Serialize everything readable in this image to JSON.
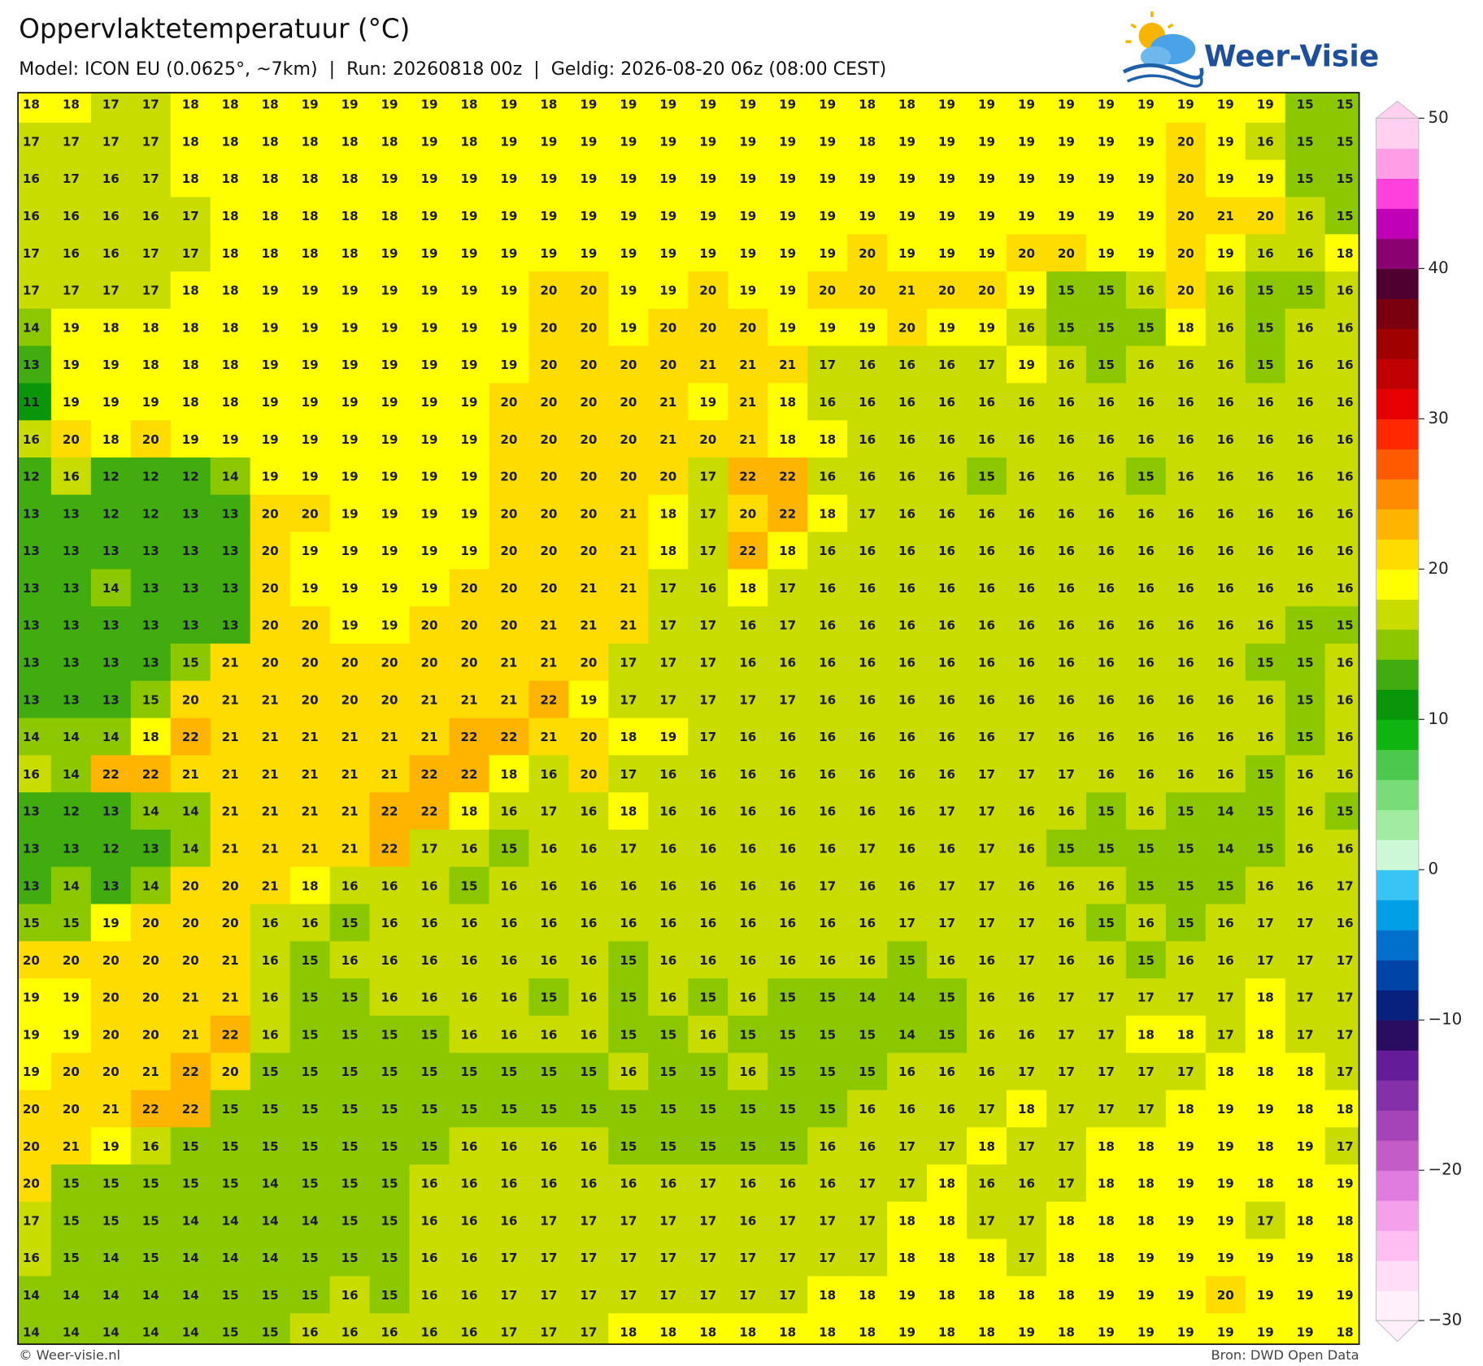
{
  "chart_data": {
    "type": "grid",
    "title": "Oppervlaktetemperatuur (°C)",
    "subtitle": "Model: ICON EU (0.0625°, ~7km)  |  Run: 20260818 00z  |  Geldig: 2026-08-20 06z (08:00 CEST)",
    "values": [
      [
        18,
        18,
        17,
        17,
        18,
        18,
        18,
        19,
        19,
        19,
        19,
        18,
        19,
        18,
        19,
        19,
        19,
        19,
        19,
        19,
        19,
        18,
        18,
        19,
        19,
        19,
        19,
        19,
        19,
        19,
        19,
        19,
        15,
        15
      ],
      [
        17,
        17,
        17,
        17,
        18,
        18,
        18,
        18,
        18,
        18,
        19,
        18,
        19,
        19,
        19,
        19,
        19,
        19,
        19,
        19,
        19,
        18,
        19,
        19,
        19,
        19,
        19,
        19,
        19,
        20,
        19,
        16,
        15,
        15
      ],
      [
        16,
        17,
        16,
        17,
        18,
        18,
        18,
        18,
        18,
        19,
        19,
        19,
        19,
        19,
        19,
        19,
        19,
        19,
        19,
        19,
        19,
        19,
        19,
        19,
        19,
        19,
        19,
        19,
        19,
        20,
        19,
        19,
        15,
        15
      ],
      [
        16,
        16,
        16,
        16,
        17,
        18,
        18,
        18,
        18,
        18,
        19,
        19,
        19,
        19,
        19,
        19,
        19,
        19,
        19,
        19,
        19,
        19,
        19,
        19,
        19,
        19,
        19,
        19,
        19,
        20,
        21,
        20,
        16,
        15
      ],
      [
        17,
        16,
        16,
        17,
        17,
        18,
        18,
        18,
        18,
        19,
        19,
        19,
        19,
        19,
        19,
        19,
        19,
        19,
        19,
        19,
        19,
        20,
        19,
        19,
        19,
        20,
        20,
        19,
        19,
        20,
        19,
        16,
        16,
        18
      ],
      [
        17,
        17,
        17,
        17,
        18,
        18,
        19,
        19,
        19,
        19,
        19,
        19,
        19,
        20,
        20,
        19,
        19,
        20,
        19,
        19,
        20,
        20,
        21,
        20,
        20,
        19,
        15,
        15,
        16,
        20,
        16,
        15,
        15,
        16
      ],
      [
        14,
        19,
        18,
        18,
        18,
        18,
        19,
        19,
        19,
        19,
        19,
        19,
        19,
        20,
        20,
        19,
        20,
        20,
        20,
        19,
        19,
        19,
        20,
        19,
        19,
        16,
        15,
        15,
        15,
        18,
        16,
        15,
        16,
        16
      ],
      [
        13,
        19,
        19,
        18,
        18,
        18,
        19,
        19,
        19,
        19,
        19,
        19,
        19,
        20,
        20,
        20,
        20,
        21,
        21,
        21,
        17,
        16,
        16,
        16,
        17,
        19,
        16,
        15,
        16,
        16,
        16,
        15,
        16,
        16
      ],
      [
        11,
        19,
        19,
        19,
        18,
        18,
        19,
        19,
        19,
        19,
        19,
        19,
        20,
        20,
        20,
        20,
        21,
        19,
        21,
        18,
        16,
        16,
        16,
        16,
        16,
        16,
        16,
        16,
        16,
        16,
        16,
        16,
        16,
        16
      ],
      [
        16,
        20,
        18,
        20,
        19,
        19,
        19,
        19,
        19,
        19,
        19,
        19,
        20,
        20,
        20,
        20,
        21,
        20,
        21,
        18,
        18,
        16,
        16,
        16,
        16,
        16,
        16,
        16,
        16,
        16,
        16,
        16,
        16,
        16
      ],
      [
        12,
        16,
        12,
        12,
        12,
        14,
        19,
        19,
        19,
        19,
        19,
        19,
        20,
        20,
        20,
        20,
        20,
        17,
        22,
        22,
        16,
        16,
        16,
        16,
        15,
        16,
        16,
        16,
        15,
        16,
        16,
        16,
        16,
        16
      ],
      [
        13,
        13,
        12,
        12,
        13,
        13,
        20,
        20,
        19,
        19,
        19,
        19,
        20,
        20,
        20,
        21,
        18,
        17,
        20,
        22,
        18,
        17,
        16,
        16,
        16,
        16,
        16,
        16,
        16,
        16,
        16,
        16,
        16,
        16
      ],
      [
        13,
        13,
        13,
        13,
        13,
        13,
        20,
        19,
        19,
        19,
        19,
        19,
        20,
        20,
        20,
        21,
        18,
        17,
        22,
        18,
        16,
        16,
        16,
        16,
        16,
        16,
        16,
        16,
        16,
        16,
        16,
        16,
        16,
        16
      ],
      [
        13,
        13,
        14,
        13,
        13,
        13,
        20,
        19,
        19,
        19,
        19,
        20,
        20,
        20,
        21,
        21,
        17,
        16,
        18,
        17,
        16,
        16,
        16,
        16,
        16,
        16,
        16,
        16,
        16,
        16,
        16,
        16,
        16,
        16
      ],
      [
        13,
        13,
        13,
        13,
        13,
        13,
        20,
        20,
        19,
        19,
        20,
        20,
        20,
        21,
        21,
        21,
        17,
        17,
        16,
        17,
        16,
        16,
        16,
        16,
        16,
        16,
        16,
        16,
        16,
        16,
        16,
        16,
        15,
        15
      ],
      [
        13,
        13,
        13,
        13,
        15,
        21,
        20,
        20,
        20,
        20,
        20,
        20,
        21,
        21,
        20,
        17,
        17,
        17,
        16,
        16,
        16,
        16,
        16,
        16,
        16,
        16,
        16,
        16,
        16,
        16,
        16,
        15,
        15,
        16
      ],
      [
        13,
        13,
        13,
        15,
        20,
        21,
        21,
        20,
        20,
        20,
        21,
        21,
        21,
        22,
        19,
        17,
        17,
        17,
        17,
        17,
        16,
        16,
        16,
        16,
        16,
        16,
        16,
        16,
        16,
        16,
        16,
        16,
        15,
        16
      ],
      [
        14,
        14,
        14,
        18,
        22,
        21,
        21,
        21,
        21,
        21,
        21,
        22,
        22,
        21,
        20,
        18,
        19,
        17,
        16,
        16,
        16,
        16,
        16,
        16,
        16,
        17,
        16,
        16,
        16,
        16,
        16,
        16,
        15,
        16
      ],
      [
        16,
        14,
        22,
        22,
        21,
        21,
        21,
        21,
        21,
        21,
        22,
        22,
        18,
        16,
        20,
        17,
        16,
        16,
        16,
        16,
        16,
        16,
        16,
        16,
        17,
        17,
        17,
        16,
        16,
        16,
        16,
        15,
        16,
        16
      ],
      [
        13,
        12,
        13,
        14,
        14,
        21,
        21,
        21,
        21,
        22,
        22,
        18,
        16,
        17,
        16,
        18,
        16,
        16,
        16,
        16,
        16,
        16,
        16,
        17,
        17,
        16,
        16,
        15,
        16,
        15,
        14,
        15,
        16,
        15
      ],
      [
        13,
        13,
        12,
        13,
        14,
        21,
        21,
        21,
        21,
        22,
        17,
        16,
        15,
        16,
        16,
        17,
        16,
        16,
        16,
        16,
        16,
        17,
        16,
        16,
        17,
        16,
        15,
        15,
        15,
        15,
        14,
        15,
        16,
        16
      ],
      [
        13,
        14,
        13,
        14,
        20,
        20,
        21,
        18,
        16,
        16,
        16,
        15,
        16,
        16,
        16,
        16,
        16,
        16,
        16,
        16,
        17,
        16,
        16,
        17,
        17,
        16,
        16,
        16,
        15,
        15,
        15,
        16,
        16,
        17
      ],
      [
        15,
        15,
        19,
        20,
        20,
        20,
        16,
        16,
        15,
        16,
        16,
        16,
        16,
        16,
        16,
        16,
        16,
        16,
        16,
        16,
        16,
        16,
        17,
        17,
        17,
        17,
        16,
        15,
        16,
        15,
        16,
        17,
        17,
        16
      ],
      [
        20,
        20,
        20,
        20,
        20,
        21,
        16,
        15,
        16,
        16,
        16,
        16,
        16,
        16,
        16,
        15,
        16,
        16,
        16,
        16,
        16,
        16,
        15,
        16,
        16,
        17,
        16,
        16,
        15,
        16,
        16,
        17,
        17,
        17
      ],
      [
        19,
        19,
        20,
        20,
        21,
        21,
        16,
        15,
        15,
        16,
        16,
        16,
        16,
        15,
        16,
        15,
        16,
        15,
        16,
        15,
        15,
        14,
        14,
        15,
        16,
        16,
        17,
        17,
        17,
        17,
        17,
        18,
        17,
        17
      ],
      [
        19,
        19,
        20,
        20,
        21,
        22,
        16,
        15,
        15,
        15,
        15,
        16,
        16,
        16,
        16,
        15,
        15,
        16,
        15,
        15,
        15,
        15,
        14,
        15,
        16,
        16,
        17,
        17,
        18,
        18,
        17,
        18,
        17,
        17
      ],
      [
        19,
        20,
        20,
        21,
        22,
        20,
        15,
        15,
        15,
        15,
        15,
        15,
        15,
        15,
        15,
        16,
        15,
        15,
        16,
        15,
        15,
        15,
        16,
        16,
        16,
        17,
        17,
        17,
        17,
        17,
        18,
        18,
        18,
        17
      ],
      [
        20,
        20,
        21,
        22,
        22,
        15,
        15,
        15,
        15,
        15,
        15,
        15,
        15,
        15,
        15,
        15,
        15,
        15,
        15,
        15,
        15,
        16,
        16,
        16,
        17,
        18,
        17,
        17,
        17,
        18,
        19,
        19,
        18,
        18
      ],
      [
        20,
        21,
        19,
        16,
        15,
        15,
        15,
        15,
        15,
        15,
        15,
        16,
        16,
        16,
        16,
        15,
        15,
        15,
        15,
        15,
        16,
        16,
        17,
        17,
        18,
        17,
        17,
        18,
        18,
        19,
        19,
        18,
        19,
        17
      ],
      [
        20,
        15,
        15,
        15,
        15,
        15,
        14,
        15,
        15,
        15,
        16,
        16,
        16,
        16,
        16,
        16,
        16,
        17,
        16,
        16,
        16,
        17,
        17,
        18,
        16,
        16,
        17,
        18,
        18,
        19,
        19,
        18,
        18,
        19
      ],
      [
        17,
        15,
        15,
        15,
        14,
        14,
        14,
        14,
        15,
        15,
        16,
        16,
        16,
        17,
        17,
        17,
        17,
        17,
        16,
        17,
        17,
        17,
        18,
        18,
        17,
        17,
        18,
        18,
        18,
        19,
        19,
        17,
        18,
        18
      ],
      [
        16,
        15,
        14,
        15,
        14,
        14,
        14,
        15,
        15,
        15,
        16,
        16,
        17,
        17,
        17,
        17,
        17,
        17,
        17,
        17,
        17,
        17,
        18,
        18,
        18,
        17,
        18,
        18,
        19,
        19,
        19,
        19,
        19,
        18
      ],
      [
        14,
        14,
        14,
        14,
        14,
        15,
        15,
        15,
        16,
        15,
        16,
        16,
        17,
        17,
        17,
        17,
        17,
        17,
        17,
        17,
        18,
        18,
        19,
        18,
        18,
        18,
        18,
        19,
        19,
        19,
        20,
        19,
        19,
        19
      ],
      [
        14,
        14,
        14,
        14,
        14,
        15,
        15,
        16,
        16,
        16,
        16,
        16,
        17,
        17,
        17,
        18,
        18,
        18,
        18,
        18,
        18,
        18,
        19,
        18,
        18,
        19,
        18,
        19,
        19,
        19,
        19,
        19,
        19,
        18
      ]
    ],
    "colorbar": {
      "lim": [
        -30,
        50
      ],
      "ticks": [
        {
          "value": -30,
          "label": "−30"
        },
        {
          "value": -20,
          "label": "−20"
        },
        {
          "value": -10,
          "label": "−10"
        },
        0,
        10,
        20,
        30,
        40,
        50
      ],
      "colors": [
        "#fff0fc",
        "#ffdcf8",
        "#ffbef2",
        "#f4a0ea",
        "#e07ce0",
        "#c45cc8",
        "#a444b8",
        "#8430a8",
        "#641c98",
        "#2a0c60",
        "#08207e",
        "#0044a8",
        "#0070cc",
        "#00a0e6",
        "#38c4f4",
        "#ccf8d8",
        "#a0eca0",
        "#78dc78",
        "#4cc84c",
        "#10b410",
        "#0a960a",
        "#40ac10",
        "#8cc800",
        "#c8dc00",
        "#ffff00",
        "#ffdc00",
        "#ffb400",
        "#ff8c00",
        "#ff5a00",
        "#ff2800",
        "#e60000",
        "#c00000",
        "#a00000",
        "#7a0010",
        "#500030",
        "#8a0070",
        "#c000b4",
        "#ff40dc",
        "#ff9ee6",
        "#ffd0f0"
      ]
    }
  },
  "logo": "Weer-Visie",
  "footer_left": "© Weer-visie.nl",
  "footer_right": "Bron: DWD Open Data"
}
